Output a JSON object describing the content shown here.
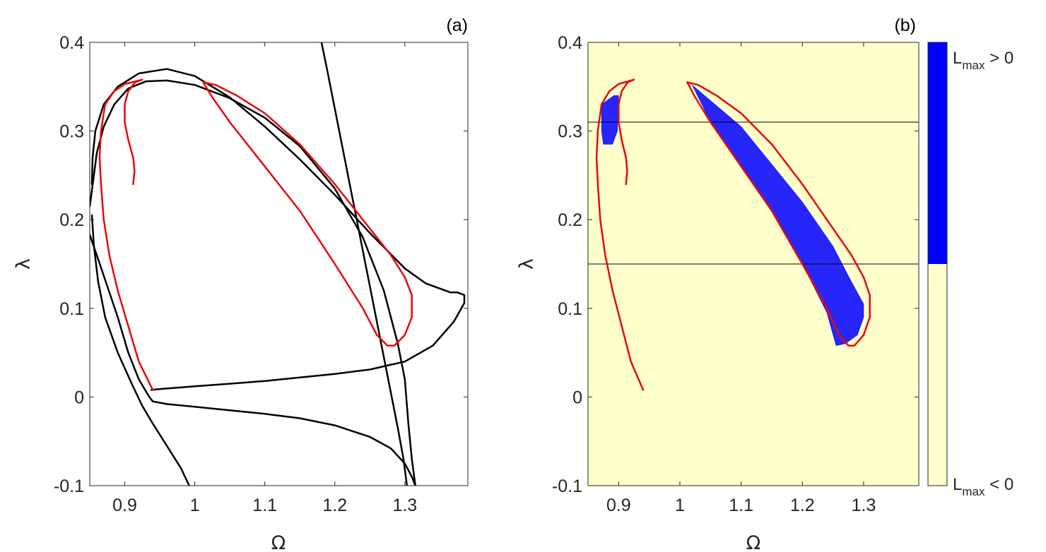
{
  "colors": {
    "black_curve": "#000000",
    "red_curve": "#e8080b",
    "background_b": "#ffffcc",
    "chaos": "#0000ff",
    "axis": "#262626"
  },
  "chart_data": [
    {
      "type": "line",
      "panel_label": "(a)",
      "xlabel": "Ω",
      "ylabel": "λ",
      "xlim": [
        0.85,
        1.39
      ],
      "ylim": [
        -0.1,
        0.4
      ],
      "xticks": [
        0.9,
        1,
        1.1,
        1.2,
        1.3
      ],
      "xtick_labels": [
        "0.9",
        "1",
        "1.1",
        "1.2",
        "1.3"
      ],
      "yticks": [
        -0.1,
        0,
        0.1,
        0.2,
        0.3,
        0.4
      ],
      "ytick_labels": [
        "-0.1",
        "0",
        "0.1",
        "0.2",
        "0.3",
        "0.4"
      ],
      "grid": false,
      "series": [
        {
          "color": "black",
          "points": [
            [
              0.938,
              0.008
            ],
            [
              0.95,
              0.009
            ],
            [
              1.0,
              0.012
            ],
            [
              1.05,
              0.015
            ],
            [
              1.1,
              0.018
            ],
            [
              1.15,
              0.022
            ],
            [
              1.2,
              0.026
            ],
            [
              1.25,
              0.031
            ],
            [
              1.3,
              0.04
            ],
            [
              1.34,
              0.058
            ],
            [
              1.37,
              0.085
            ],
            [
              1.385,
              0.106
            ],
            [
              1.385,
              0.115
            ],
            [
              1.375,
              0.118
            ],
            [
              1.365,
              0.118
            ],
            [
              1.33,
              0.128
            ],
            [
              1.3,
              0.145
            ],
            [
              1.25,
              0.185
            ],
            [
              1.2,
              0.228
            ],
            [
              1.15,
              0.268
            ],
            [
              1.1,
              0.305
            ],
            [
              1.05,
              0.338
            ],
            [
              1.0,
              0.362
            ],
            [
              0.96,
              0.37
            ],
            [
              0.92,
              0.365
            ],
            [
              0.89,
              0.35
            ],
            [
              0.87,
              0.33
            ],
            [
              0.858,
              0.3
            ],
            [
              0.854,
              0.27
            ],
            [
              0.853,
              0.24
            ]
          ]
        },
        {
          "color": "black",
          "points": [
            [
              0.853,
              0.205
            ],
            [
              0.856,
              0.17
            ],
            [
              0.862,
              0.13
            ],
            [
              0.872,
              0.09
            ],
            [
              0.89,
              0.05
            ],
            [
              0.91,
              0.015
            ],
            [
              0.925,
              -0.01
            ],
            [
              0.94,
              -0.03
            ],
            [
              0.96,
              -0.055
            ],
            [
              0.98,
              -0.08
            ],
            [
              0.992,
              -0.1
            ]
          ]
        },
        {
          "color": "black",
          "points": [
            [
              0.85,
              0.183
            ],
            [
              0.86,
              0.16
            ],
            [
              0.875,
              0.125
            ],
            [
              0.89,
              0.09
            ],
            [
              0.905,
              0.05
            ],
            [
              0.92,
              0.02
            ],
            [
              0.935,
              0.0
            ],
            [
              0.94,
              -0.005
            ]
          ]
        },
        {
          "color": "black",
          "points": [
            [
              0.94,
              -0.005
            ],
            [
              0.96,
              -0.008
            ],
            [
              1.0,
              -0.011
            ],
            [
              1.05,
              -0.015
            ],
            [
              1.1,
              -0.019
            ],
            [
              1.15,
              -0.024
            ],
            [
              1.2,
              -0.032
            ],
            [
              1.25,
              -0.045
            ],
            [
              1.28,
              -0.058
            ],
            [
              1.3,
              -0.075
            ],
            [
              1.31,
              -0.09
            ],
            [
              1.315,
              -0.1
            ]
          ]
        },
        {
          "color": "black",
          "points": [
            [
              0.85,
              0.215
            ],
            [
              0.855,
              0.245
            ],
            [
              0.86,
              0.275
            ],
            [
              0.87,
              0.305
            ],
            [
              0.885,
              0.33
            ],
            [
              0.905,
              0.348
            ],
            [
              0.93,
              0.356
            ],
            [
              0.96,
              0.357
            ],
            [
              1.0,
              0.352
            ],
            [
              1.05,
              0.337
            ],
            [
              1.1,
              0.315
            ],
            [
              1.15,
              0.283
            ],
            [
              1.2,
              0.235
            ],
            [
              1.24,
              0.18
            ],
            [
              1.27,
              0.12
            ],
            [
              1.29,
              0.06
            ],
            [
              1.3,
              0.02
            ],
            [
              1.305,
              -0.03
            ],
            [
              1.31,
              -0.07
            ],
            [
              1.315,
              -0.1
            ]
          ]
        },
        {
          "color": "black",
          "points": [
            [
              1.181,
              0.4
            ],
            [
              1.19,
              0.365
            ],
            [
              1.2,
              0.325
            ],
            [
              1.21,
              0.285
            ],
            [
              1.22,
              0.245
            ],
            [
              1.23,
              0.205
            ],
            [
              1.24,
              0.165
            ],
            [
              1.25,
              0.125
            ],
            [
              1.26,
              0.085
            ],
            [
              1.27,
              0.045
            ],
            [
              1.28,
              0.005
            ],
            [
              1.29,
              -0.035
            ],
            [
              1.298,
              -0.07
            ],
            [
              1.303,
              -0.1
            ]
          ]
        },
        {
          "color": "red",
          "points": [
            [
              0.912,
              0.24
            ],
            [
              0.914,
              0.255
            ],
            [
              0.912,
              0.27
            ],
            [
              0.905,
              0.29
            ],
            [
              0.9,
              0.31
            ],
            [
              0.9,
              0.33
            ],
            [
              0.905,
              0.345
            ],
            [
              0.915,
              0.355
            ],
            [
              0.925,
              0.358
            ],
            [
              0.915,
              0.356
            ],
            [
              0.9,
              0.353
            ],
            [
              0.885,
              0.345
            ],
            [
              0.872,
              0.33
            ],
            [
              0.866,
              0.3
            ],
            [
              0.864,
              0.27
            ],
            [
              0.866,
              0.24
            ],
            [
              0.87,
              0.2
            ],
            [
              0.878,
              0.16
            ],
            [
              0.89,
              0.12
            ],
            [
              0.905,
              0.08
            ],
            [
              0.92,
              0.04
            ],
            [
              0.94,
              0.008
            ]
          ]
        },
        {
          "color": "red",
          "points": [
            [
              1.012,
              0.355
            ],
            [
              1.03,
              0.352
            ],
            [
              1.06,
              0.34
            ],
            [
              1.1,
              0.32
            ],
            [
              1.15,
              0.285
            ],
            [
              1.2,
              0.24
            ],
            [
              1.25,
              0.19
            ],
            [
              1.28,
              0.16
            ],
            [
              1.3,
              0.135
            ],
            [
              1.31,
              0.115
            ],
            [
              1.31,
              0.09
            ],
            [
              1.3,
              0.07
            ],
            [
              1.285,
              0.058
            ],
            [
              1.275,
              0.058
            ],
            [
              1.26,
              0.07
            ],
            [
              1.24,
              0.1
            ],
            [
              1.2,
              0.15
            ],
            [
              1.15,
              0.21
            ],
            [
              1.1,
              0.26
            ],
            [
              1.05,
              0.31
            ],
            [
              1.025,
              0.338
            ],
            [
              1.012,
              0.355
            ]
          ]
        }
      ]
    },
    {
      "type": "heatmap",
      "panel_label": "(b)",
      "xlabel": "Ω",
      "ylabel": "λ",
      "xlim": [
        0.85,
        1.39
      ],
      "ylim": [
        -0.1,
        0.4
      ],
      "xticks": [
        0.9,
        1,
        1.1,
        1.2,
        1.3
      ],
      "xtick_labels": [
        "0.9",
        "1",
        "1.1",
        "1.2",
        "1.3"
      ],
      "yticks": [
        -0.1,
        0,
        0.1,
        0.2,
        0.3,
        0.4
      ],
      "ytick_labels": [
        "-0.1",
        "0",
        "0.1",
        "0.2",
        "0.3",
        "0.4"
      ],
      "grid": false,
      "regions": [
        {
          "label": "chaotic (blue)",
          "polygon": [
            [
              0.872,
              0.33
            ],
            [
              0.892,
              0.34
            ],
            [
              0.9,
              0.34
            ],
            [
              0.898,
              0.3
            ],
            [
              0.89,
              0.285
            ],
            [
              0.875,
              0.285
            ],
            [
              0.872,
              0.3
            ]
          ]
        },
        {
          "label": "chaotic (blue)",
          "polygon": [
            [
              1.02,
              0.352
            ],
            [
              1.1,
              0.305
            ],
            [
              1.2,
              0.22
            ],
            [
              1.25,
              0.17
            ],
            [
              1.28,
              0.13
            ],
            [
              1.3,
              0.105
            ],
            [
              1.3,
              0.09
            ],
            [
              1.29,
              0.07
            ],
            [
              1.27,
              0.06
            ],
            [
              1.255,
              0.058
            ],
            [
              1.25,
              0.07
            ],
            [
              1.24,
              0.095
            ],
            [
              1.2,
              0.15
            ],
            [
              1.15,
              0.21
            ],
            [
              1.1,
              0.26
            ],
            [
              1.05,
              0.31
            ]
          ]
        }
      ],
      "horizontal_lines": [
        0.31,
        0.15
      ],
      "series": [
        {
          "color": "red",
          "points": [
            [
              0.912,
              0.24
            ],
            [
              0.914,
              0.255
            ],
            [
              0.912,
              0.27
            ],
            [
              0.905,
              0.29
            ],
            [
              0.9,
              0.31
            ],
            [
              0.9,
              0.33
            ],
            [
              0.905,
              0.345
            ],
            [
              0.915,
              0.355
            ],
            [
              0.925,
              0.358
            ],
            [
              0.915,
              0.356
            ],
            [
              0.9,
              0.353
            ],
            [
              0.885,
              0.345
            ],
            [
              0.872,
              0.33
            ],
            [
              0.866,
              0.3
            ],
            [
              0.864,
              0.27
            ],
            [
              0.866,
              0.24
            ],
            [
              0.87,
              0.2
            ],
            [
              0.878,
              0.16
            ],
            [
              0.89,
              0.12
            ],
            [
              0.905,
              0.08
            ],
            [
              0.92,
              0.04
            ],
            [
              0.94,
              0.008
            ]
          ]
        },
        {
          "color": "red",
          "points": [
            [
              1.012,
              0.355
            ],
            [
              1.03,
              0.352
            ],
            [
              1.06,
              0.34
            ],
            [
              1.1,
              0.32
            ],
            [
              1.15,
              0.285
            ],
            [
              1.2,
              0.24
            ],
            [
              1.25,
              0.19
            ],
            [
              1.28,
              0.16
            ],
            [
              1.3,
              0.135
            ],
            [
              1.31,
              0.115
            ],
            [
              1.31,
              0.09
            ],
            [
              1.3,
              0.07
            ],
            [
              1.285,
              0.058
            ],
            [
              1.275,
              0.058
            ],
            [
              1.26,
              0.07
            ],
            [
              1.24,
              0.1
            ],
            [
              1.2,
              0.15
            ],
            [
              1.15,
              0.21
            ],
            [
              1.1,
              0.26
            ],
            [
              1.05,
              0.31
            ],
            [
              1.025,
              0.338
            ],
            [
              1.012,
              0.355
            ]
          ]
        }
      ],
      "colorbar": {
        "top_label_main": "L",
        "top_label_sub": "max",
        "top_label_rest": " > 0",
        "bottom_label_main": "L",
        "bottom_label_sub": "max",
        "bottom_label_rest": " < 0",
        "split_fraction": 0.5
      }
    }
  ]
}
